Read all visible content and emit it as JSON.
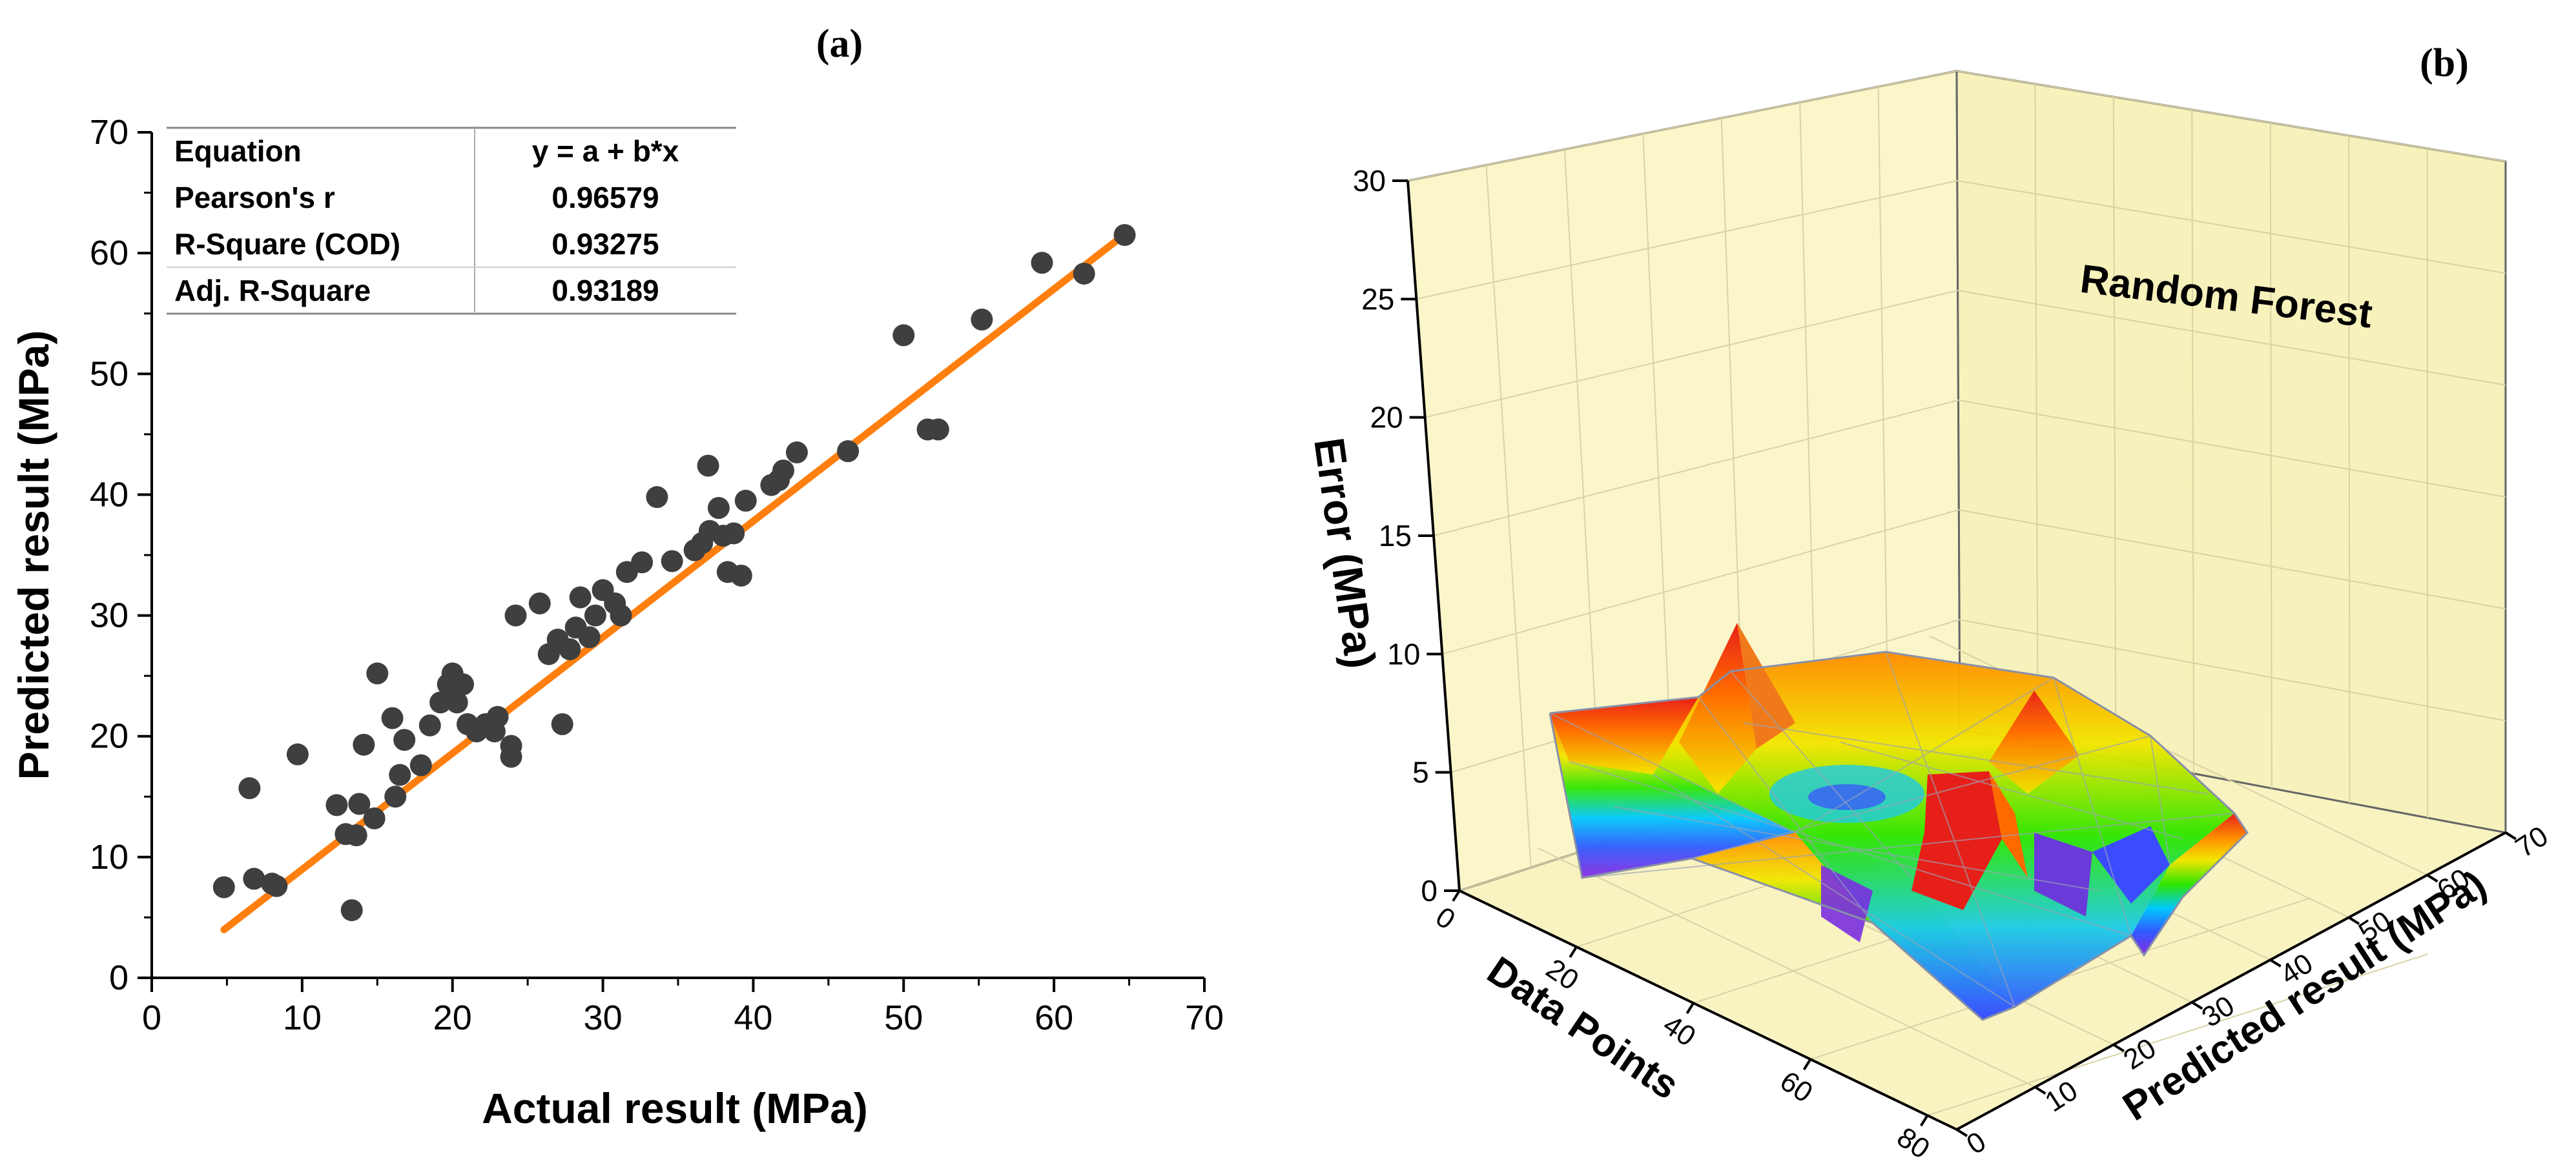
{
  "panels": {
    "a": {
      "label": "(a)"
    },
    "b": {
      "label": "(b)"
    }
  },
  "colors": {
    "points": "#3f3f3f",
    "fit_line": "#ff7f0e",
    "wall": "#fbf6c9",
    "axis": "#000000"
  },
  "chart_data": [
    {
      "panel": "(a)",
      "type": "scatter",
      "xlabel": "Actual result (MPa)",
      "ylabel": "Predicted result (MPa)",
      "xlim": [
        0,
        70
      ],
      "ylim": [
        0,
        70
      ],
      "xticks": [
        "0",
        "10",
        "20",
        "30",
        "40",
        "50",
        "60",
        "70"
      ],
      "yticks": [
        "0",
        "10",
        "20",
        "30",
        "40",
        "50",
        "60",
        "70"
      ],
      "fit": {
        "intercept": -0.63,
        "slope": 0.961,
        "x_range": [
          4.8,
          64.8
        ]
      },
      "stats_table": [
        [
          "Equation",
          "y = a + b*x"
        ],
        [
          "Pearson's r",
          "0.96579"
        ],
        [
          "R-Square (COD)",
          "0.93275"
        ],
        [
          "Adj. R-Square",
          "0.93189"
        ]
      ],
      "points": [
        [
          4.8,
          7.5
        ],
        [
          6.5,
          15.7
        ],
        [
          6.8,
          8.2
        ],
        [
          8.0,
          7.8
        ],
        [
          8.3,
          7.6
        ],
        [
          9.7,
          18.5
        ],
        [
          12.3,
          14.3
        ],
        [
          12.9,
          11.9
        ],
        [
          13.3,
          5.6
        ],
        [
          13.6,
          11.8
        ],
        [
          13.8,
          14.4
        ],
        [
          14.1,
          19.3
        ],
        [
          14.8,
          13.2
        ],
        [
          15.0,
          25.2
        ],
        [
          16.0,
          21.5
        ],
        [
          16.2,
          15.0
        ],
        [
          16.5,
          16.8
        ],
        [
          16.8,
          19.7
        ],
        [
          17.9,
          17.6
        ],
        [
          18.5,
          20.9
        ],
        [
          19.2,
          22.8
        ],
        [
          19.7,
          24.3
        ],
        [
          20.0,
          25.2
        ],
        [
          20.3,
          22.8
        ],
        [
          20.7,
          24.3
        ],
        [
          21.0,
          21.0
        ],
        [
          21.6,
          20.4
        ],
        [
          22.2,
          21.0
        ],
        [
          22.8,
          20.4
        ],
        [
          23.0,
          21.6
        ],
        [
          23.9,
          19.2
        ],
        [
          23.9,
          18.3
        ],
        [
          24.2,
          30.0
        ],
        [
          25.8,
          31.0
        ],
        [
          26.4,
          26.8
        ],
        [
          27.0,
          28.0
        ],
        [
          27.3,
          21.0
        ],
        [
          27.8,
          27.2
        ],
        [
          28.2,
          29.0
        ],
        [
          28.5,
          31.5
        ],
        [
          29.1,
          28.2
        ],
        [
          29.5,
          30.0
        ],
        [
          30.0,
          32.1
        ],
        [
          30.8,
          31.0
        ],
        [
          31.2,
          30.0
        ],
        [
          31.6,
          33.6
        ],
        [
          32.6,
          34.4
        ],
        [
          33.6,
          39.8
        ],
        [
          34.6,
          34.5
        ],
        [
          36.1,
          35.4
        ],
        [
          36.6,
          36.0
        ],
        [
          37.0,
          42.4
        ],
        [
          37.1,
          37.0
        ],
        [
          37.7,
          38.9
        ],
        [
          38.0,
          36.6
        ],
        [
          38.3,
          33.6
        ],
        [
          38.7,
          36.8
        ],
        [
          39.2,
          33.3
        ],
        [
          39.5,
          39.5
        ],
        [
          41.2,
          40.8
        ],
        [
          41.7,
          41.2
        ],
        [
          42.0,
          42.0
        ],
        [
          42.9,
          43.5
        ],
        [
          46.3,
          43.6
        ],
        [
          50.0,
          53.2
        ],
        [
          51.6,
          45.4
        ],
        [
          52.3,
          45.4
        ],
        [
          55.2,
          54.5
        ],
        [
          59.2,
          59.2
        ],
        [
          62.0,
          58.3
        ],
        [
          64.7,
          61.5
        ]
      ]
    },
    {
      "panel": "(b)",
      "type": "surface3d",
      "title": "Random Forest",
      "zlabel": "Error (MPa)",
      "xlabel": "Data Points",
      "ylabel": "Predicted result (MPa)",
      "zlim": [
        0,
        30
      ],
      "xlim": [
        0,
        85
      ],
      "ylim": [
        0,
        70
      ],
      "zticks": [
        "0",
        "5",
        "10",
        "15",
        "20",
        "25",
        "30"
      ],
      "xticks": [
        "0",
        "20",
        "40",
        "60",
        "80"
      ],
      "yticks": [
        "0",
        "10",
        "20",
        "30",
        "40",
        "50",
        "60",
        "70"
      ]
    }
  ]
}
